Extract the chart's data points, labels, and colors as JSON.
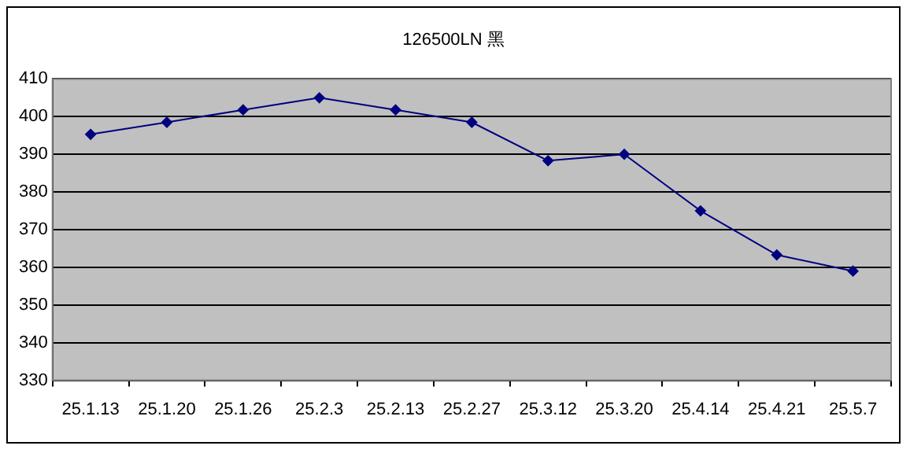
{
  "chart_data": {
    "type": "line",
    "title": "126500LN 黑",
    "categories": [
      "25.1.13",
      "25.1.20",
      "25.1.26",
      "25.2.3",
      "25.2.13",
      "25.2.27",
      "25.3.12",
      "25.3.20",
      "25.4.14",
      "25.4.21",
      "25.5.7"
    ],
    "series": [
      {
        "color": "#000080",
        "values": [
          395.3,
          398.5,
          401.8,
          405,
          401.8,
          398.5,
          388.3,
          390,
          375,
          363.3,
          359
        ]
      }
    ],
    "ylim": [
      330,
      410
    ],
    "yticks": [
      330,
      340,
      350,
      360,
      370,
      380,
      390,
      400,
      410
    ],
    "grid": "y",
    "legend": false,
    "marker": "diamond",
    "line_style": "solid"
  }
}
